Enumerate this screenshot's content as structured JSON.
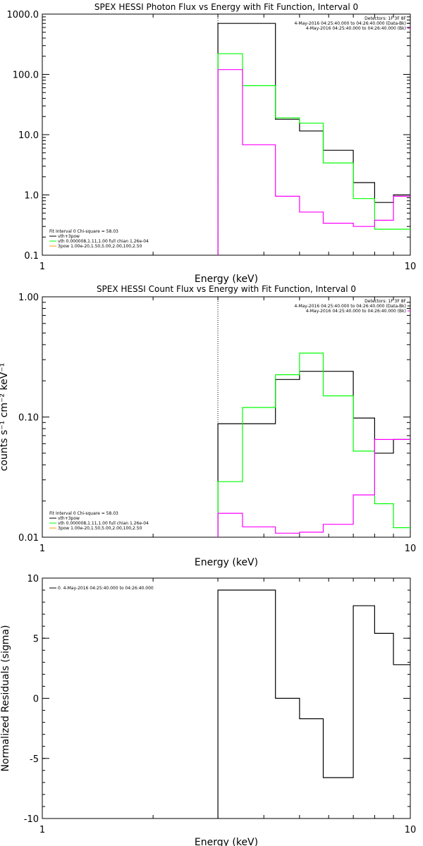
{
  "colors": {
    "black": "#000000",
    "green": "#00ff00",
    "magenta": "#ff00ff",
    "orange": "#ff9900"
  },
  "chart_data": [
    {
      "type": "line",
      "step": true,
      "title": "SPEX HESSI Photon Flux vs Energy with Fit Function, Interval 0",
      "xlabel": "Energy (keV)",
      "ylabel": "",
      "xscale": "log",
      "yscale": "log",
      "xlim": [
        1,
        10
      ],
      "ylim": [
        0.1,
        1000
      ],
      "xticks": [
        1,
        10
      ],
      "xtick_labels": [
        "1",
        "10"
      ],
      "yticks": [
        0.1,
        1,
        10,
        100,
        1000
      ],
      "ytick_labels": [
        "0.1",
        "1.0",
        "10.0",
        "100.0",
        "1000.0"
      ],
      "marker_line": 3,
      "info_lines": [
        "Detectors: 1F 3F 8F",
        "4-May-2016 04:25:40.000 to 04:26:40.000 (Data-Bk)",
        "4-May-2016 04:25:40.000 to 04:26:40.000 (Bk)"
      ],
      "legend_lines": [
        "Fit Interval 0   Chi-square = 58.03",
        "vth+3pow",
        "vth 0.000008,1.11,1.00   full chian 1.26e-04",
        "3pow 1.00e-20,1.50,5.00,2.00,100,2.50"
      ],
      "edges": [
        3,
        3.5,
        4.3,
        5,
        5.8,
        7,
        8,
        9,
        10
      ],
      "series": [
        {
          "name": "4-May-2016 04:25:40.000 to 04:26:40.000 (Data-Bk)",
          "color": "black",
          "values": [
            700,
            700,
            18,
            11.5,
            5.5,
            1.6,
            0.75,
            1.0
          ]
        },
        {
          "name": "vth+3pow",
          "color": "green",
          "values": [
            220,
            65,
            19,
            15.5,
            3.4,
            0.87,
            0.27,
            0.27
          ]
        },
        {
          "name": "4-May-2016 04:25:40.000 to 04:26:40.000 (Bk)",
          "color": "magenta",
          "values": [
            120,
            6.8,
            0.95,
            0.52,
            0.34,
            0.3,
            0.38,
            0.95
          ]
        }
      ]
    },
    {
      "type": "line",
      "step": true,
      "title": "SPEX HESSI Count Flux vs Energy with Fit Function, Interval 0",
      "xlabel": "Energy (keV)",
      "ylabel": "counts s⁻¹ cm⁻² keV⁻¹",
      "xscale": "log",
      "yscale": "log",
      "xlim": [
        1,
        10
      ],
      "ylim": [
        0.01,
        1
      ],
      "xticks": [
        1,
        10
      ],
      "xtick_labels": [
        "1",
        "10"
      ],
      "yticks": [
        0.01,
        0.1,
        1
      ],
      "ytick_labels": [
        "0.01",
        "0.10",
        "1.00"
      ],
      "marker_line": 3,
      "info_lines": [
        "Detectors: 1F 3F 8F",
        "4-May-2016 04:25:40.000 to 04:26:40.000 (Data-Bk)",
        "4-May-2016 04:25:40.000 to 04:26:40.000 (Bk)"
      ],
      "legend_lines": [
        "Fit Interval 0   Chi-square = 58.03",
        "vth+3pow",
        "vth 0.000008,1.11,1.00   full chian 1.26e-04",
        "3pow 1.00e-20,1.50,5.00,2.00,100,2.50"
      ],
      "edges": [
        3,
        3.5,
        4.3,
        5,
        5.8,
        7,
        8,
        9,
        10
      ],
      "series": [
        {
          "name": "4-May-2016 04:25:40.000 to 04:26:40.000 (Data-Bk)",
          "color": "black",
          "values": [
            0.088,
            0.088,
            0.205,
            0.24,
            0.24,
            0.098,
            0.05,
            0.065
          ]
        },
        {
          "name": "vth+3pow",
          "color": "green",
          "values": [
            0.029,
            0.12,
            0.225,
            0.34,
            0.15,
            0.052,
            0.019,
            0.012
          ]
        },
        {
          "name": "4-May-2016 04:25:40.000 to 04:26:40.000 (Bk)",
          "color": "magenta",
          "values": [
            0.0158,
            0.0122,
            0.0108,
            0.011,
            0.0128,
            0.0225,
            0.065,
            0.065
          ]
        }
      ]
    },
    {
      "type": "line",
      "step": true,
      "title": "",
      "xlabel": "Energy (keV)",
      "ylabel": "Normalized Residuals (sigma)",
      "xscale": "log",
      "yscale": "linear",
      "xlim": [
        1,
        10
      ],
      "ylim": [
        -10,
        10
      ],
      "xticks": [
        1,
        10
      ],
      "xtick_labels": [
        "1",
        "10"
      ],
      "yticks": [
        -10,
        -5,
        0,
        5,
        10
      ],
      "ytick_labels": [
        "-10",
        "-5",
        "0",
        "5",
        "10"
      ],
      "legend_lines": [
        "0.  4-May-2016 04:25:40.000 to 04:26:40.000"
      ],
      "edges": [
        3,
        3.5,
        4.3,
        5,
        5.8,
        7,
        8,
        9,
        10
      ],
      "series": [
        {
          "name": "0.  4-May-2016 04:25:40.000 to 04:26:40.000",
          "color": "black",
          "values": [
            9,
            9,
            0,
            -1.7,
            -6.6,
            7.7,
            5.4,
            2.8
          ]
        }
      ]
    }
  ]
}
